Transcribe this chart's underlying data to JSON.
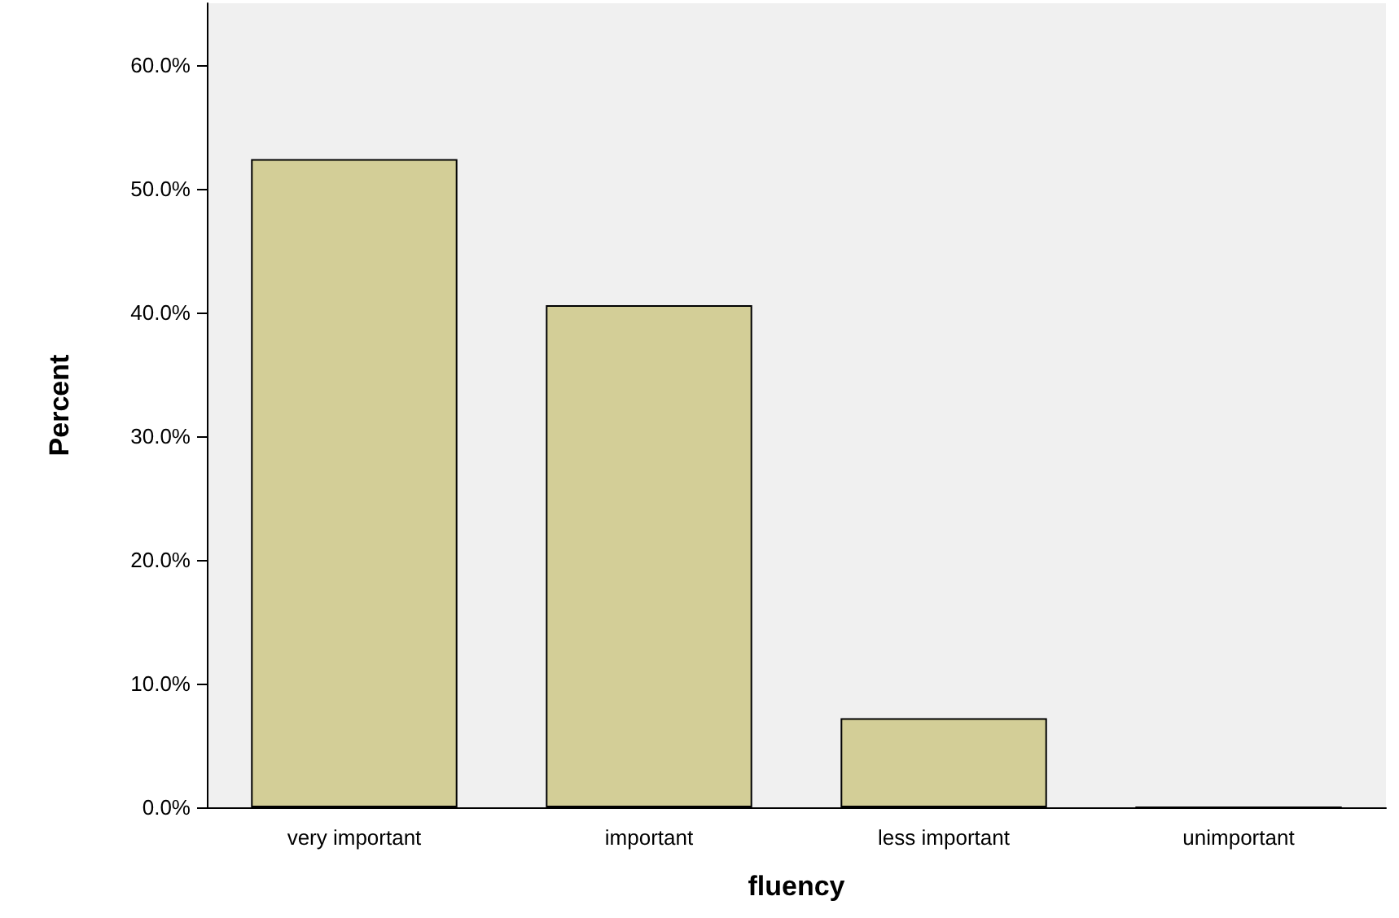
{
  "chart_data": {
    "type": "bar",
    "xlabel": "fluency",
    "ylabel": "Percent",
    "categories": [
      "very important",
      "important",
      "less important",
      "unimportant"
    ],
    "values": [
      52.4,
      40.6,
      7.2,
      0
    ],
    "color": "#d3ce97",
    "ylim": [
      0,
      65
    ],
    "yticks": [
      {
        "value": 0,
        "label": "0.0%"
      },
      {
        "value": 10,
        "label": "10.0%"
      },
      {
        "value": 20,
        "label": "20.0%"
      },
      {
        "value": 30,
        "label": "30.0%"
      },
      {
        "value": 40,
        "label": "40.0%"
      },
      {
        "value": 50,
        "label": "50.0%"
      },
      {
        "value": 60,
        "label": "60.0%"
      }
    ],
    "grid": false
  }
}
